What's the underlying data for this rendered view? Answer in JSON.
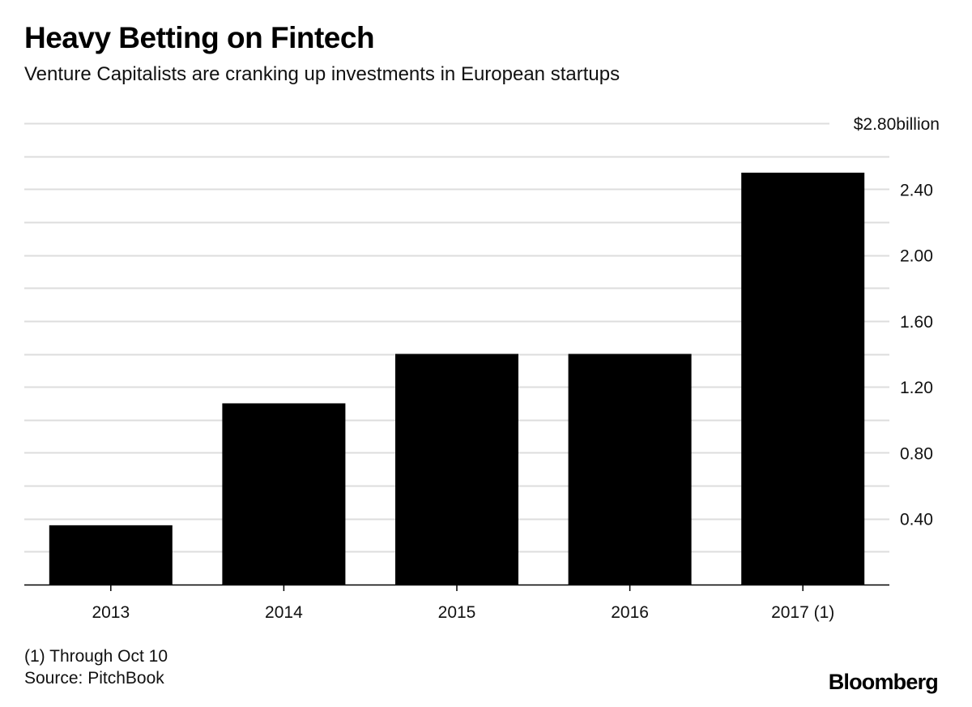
{
  "chart_data": {
    "type": "bar",
    "title": "Heavy Betting on Fintech",
    "subtitle": "Venture Capitalists are cranking up investments in European startups",
    "categories": [
      "2013",
      "2014",
      "2015",
      "2016",
      "2017 (1)"
    ],
    "values": [
      0.36,
      1.1,
      1.4,
      1.4,
      2.5
    ],
    "unit": "billion",
    "xlabel": "",
    "ylabel": "",
    "ylim": [
      0,
      2.8
    ],
    "yticks": [
      0.4,
      0.8,
      1.2,
      1.6,
      2.0,
      2.4,
      2.8
    ],
    "ytick_labels": [
      "0.40",
      "0.80",
      "1.20",
      "1.60",
      "2.00",
      "2.40",
      "$2.80billion"
    ],
    "grid": true,
    "axis_side": "right",
    "bar_color": "#000000",
    "grid_color": "#dddddd"
  },
  "footnotes": {
    "note": "(1) Through Oct 10",
    "source": "Source: PitchBook"
  },
  "brand": "Bloomberg"
}
